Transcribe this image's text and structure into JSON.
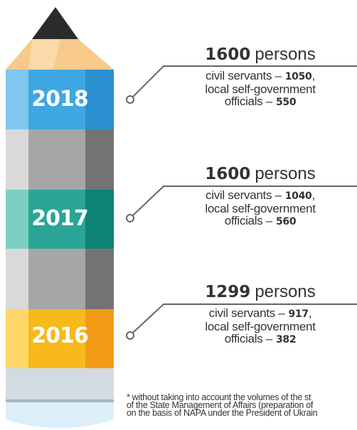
{
  "entries": [
    {
      "year": "2018",
      "total": "1600",
      "unit": "persons",
      "civil_label": "civil servants –",
      "civil": "1050",
      "sep": ",",
      "local_label_1": "local self-government",
      "local_label_2": "officials –",
      "local": "550"
    },
    {
      "year": "2017",
      "total": "1600",
      "unit": "persons",
      "civil_label": "civil servants –",
      "civil": "1040",
      "sep": ",",
      "local_label_1": "local self-government",
      "local_label_2": "officials –",
      "local": "560"
    },
    {
      "year": "2016",
      "total": "1299",
      "unit": "persons",
      "civil_label": "civil servants –",
      "civil": "917",
      "sep": ",",
      "local_label_1": "local self-government",
      "local_label_2": "officials –",
      "local": "382"
    }
  ],
  "footnote": [
    "* without taking into account the volumes of the st",
    "of the State Management of Affairs (preparation of",
    "on the basis of NAPA under the President of Ukrain"
  ]
}
